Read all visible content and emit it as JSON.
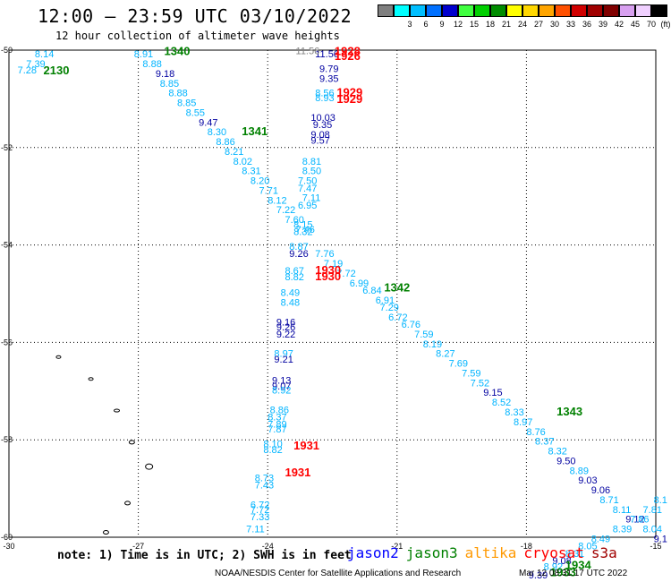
{
  "title": "12:00 — 23:59 UTC 03/10/2022",
  "subtitle": "12 hour collection of altimeter wave heights",
  "legend": {
    "unit": "(ft)",
    "items": [
      {
        "color": "#7f7f7f",
        "label": ""
      },
      {
        "color": "#00ffff",
        "label": "3"
      },
      {
        "color": "#00bfff",
        "label": "6"
      },
      {
        "color": "#0070ff",
        "label": "9"
      },
      {
        "color": "#0000cd",
        "label": "12"
      },
      {
        "color": "#40ff40",
        "label": "15"
      },
      {
        "color": "#00d000",
        "label": "18"
      },
      {
        "color": "#008c00",
        "label": "21"
      },
      {
        "color": "#ffff00",
        "label": "24"
      },
      {
        "color": "#ffd700",
        "label": "27"
      },
      {
        "color": "#ffa500",
        "label": "30"
      },
      {
        "color": "#ff5000",
        "label": "33"
      },
      {
        "color": "#d00000",
        "label": "36"
      },
      {
        "color": "#a00000",
        "label": "39"
      },
      {
        "color": "#800000",
        "label": "42"
      },
      {
        "color": "#d8a0f0",
        "label": "45"
      },
      {
        "color": "#f0d0ff",
        "label": "70"
      },
      {
        "color": "#000000",
        "label": ""
      }
    ]
  },
  "map": {
    "lon_ticks": [
      "-30",
      "-27",
      "-24",
      "-21",
      "-18",
      "-15"
    ],
    "lat_ticks": [
      "-50",
      "-52",
      "-54",
      "-56",
      "-58",
      "-60"
    ],
    "lon_range": [
      -30,
      -15
    ],
    "lat_range": [
      -60,
      -50
    ],
    "grid": "dotted",
    "colors": {
      "cyan": "#00b4ff",
      "navy": "#0000a0",
      "green": "#008000",
      "red": "#ff0000",
      "gray": "#808080"
    }
  },
  "tracks": [
    {
      "name": "track-west-north",
      "labels": [
        {
          "text": "8.14",
          "lon": -29.4,
          "lat": -50.15,
          "c": "cyan"
        },
        {
          "text": "7.39",
          "lon": -29.6,
          "lat": -50.35,
          "c": "cyan"
        },
        {
          "text": "7.28",
          "lon": -29.8,
          "lat": -50.48,
          "c": "cyan"
        }
      ]
    },
    {
      "name": "track-diagonal",
      "labels": [
        {
          "text": "8.91",
          "lon": -27.1,
          "lat": -50.15,
          "c": "cyan"
        },
        {
          "text": "8.88",
          "lon": -26.9,
          "lat": -50.35,
          "c": "cyan"
        },
        {
          "text": "9.18",
          "lon": -26.6,
          "lat": -50.55,
          "c": "navy"
        },
        {
          "text": "8.85",
          "lon": -26.5,
          "lat": -50.75,
          "c": "cyan"
        },
        {
          "text": "8.88",
          "lon": -26.3,
          "lat": -50.95,
          "c": "cyan"
        },
        {
          "text": "8.85",
          "lon": -26.1,
          "lat": -51.15,
          "c": "cyan"
        },
        {
          "text": "8.55",
          "lon": -25.9,
          "lat": -51.35,
          "c": "cyan"
        },
        {
          "text": "9.47",
          "lon": -25.6,
          "lat": -51.55,
          "c": "navy"
        },
        {
          "text": "8.30",
          "lon": -25.4,
          "lat": -51.75,
          "c": "cyan"
        },
        {
          "text": "8.86",
          "lon": -25.2,
          "lat": -51.95,
          "c": "cyan"
        },
        {
          "text": "8.21",
          "lon": -25.0,
          "lat": -52.15,
          "c": "cyan"
        },
        {
          "text": "8.02",
          "lon": -24.8,
          "lat": -52.35,
          "c": "cyan"
        },
        {
          "text": "8.31",
          "lon": -24.6,
          "lat": -52.55,
          "c": "cyan"
        },
        {
          "text": "8.20",
          "lon": -24.4,
          "lat": -52.75,
          "c": "cyan"
        },
        {
          "text": "7.71",
          "lon": -24.2,
          "lat": -52.95,
          "c": "cyan"
        },
        {
          "text": "8.12",
          "lon": -24.0,
          "lat": -53.15,
          "c": "cyan"
        },
        {
          "text": "7.22",
          "lon": -23.8,
          "lat": -53.35,
          "c": "cyan"
        },
        {
          "text": "7.60",
          "lon": -23.6,
          "lat": -53.55,
          "c": "cyan"
        },
        {
          "text": "7.46",
          "lon": -23.35,
          "lat": -53.75,
          "c": "cyan"
        },
        {
          "text": "7.76",
          "lon": -22.9,
          "lat": -54.25,
          "c": "cyan"
        },
        {
          "text": "7.19",
          "lon": -22.7,
          "lat": -54.45,
          "c": "cyan"
        },
        {
          "text": "7.72",
          "lon": -22.4,
          "lat": -54.65,
          "c": "cyan"
        },
        {
          "text": "6.99",
          "lon": -22.1,
          "lat": -54.85,
          "c": "cyan"
        },
        {
          "text": "6.84",
          "lon": -21.8,
          "lat": -55.0,
          "c": "cyan"
        },
        {
          "text": "6.91",
          "lon": -21.5,
          "lat": -55.2,
          "c": "cyan"
        },
        {
          "text": "7.29",
          "lon": -21.4,
          "lat": -55.35,
          "c": "cyan"
        },
        {
          "text": "6.72",
          "lon": -21.2,
          "lat": -55.55,
          "c": "cyan"
        },
        {
          "text": "6.76",
          "lon": -20.9,
          "lat": -55.7,
          "c": "cyan"
        },
        {
          "text": "7.59",
          "lon": -20.6,
          "lat": -55.9,
          "c": "cyan"
        },
        {
          "text": "8.19",
          "lon": -20.4,
          "lat": -56.1,
          "c": "cyan"
        },
        {
          "text": "8.27",
          "lon": -20.1,
          "lat": -56.3,
          "c": "cyan"
        },
        {
          "text": "7.69",
          "lon": -19.8,
          "lat": -56.5,
          "c": "cyan"
        },
        {
          "text": "7.59",
          "lon": -19.5,
          "lat": -56.7,
          "c": "cyan"
        },
        {
          "text": "7.52",
          "lon": -19.3,
          "lat": -56.9,
          "c": "cyan"
        },
        {
          "text": "9.15",
          "lon": -19.0,
          "lat": -57.1,
          "c": "navy"
        },
        {
          "text": "8.52",
          "lon": -18.8,
          "lat": -57.3,
          "c": "cyan"
        },
        {
          "text": "8.33",
          "lon": -18.5,
          "lat": -57.5,
          "c": "cyan"
        },
        {
          "text": "8.97",
          "lon": -18.3,
          "lat": -57.7,
          "c": "cyan"
        },
        {
          "text": "8.76",
          "lon": -18.0,
          "lat": -57.9,
          "c": "cyan"
        },
        {
          "text": "8.37",
          "lon": -17.8,
          "lat": -58.1,
          "c": "cyan"
        },
        {
          "text": "8.32",
          "lon": -17.5,
          "lat": -58.3,
          "c": "cyan"
        },
        {
          "text": "9.50",
          "lon": -17.3,
          "lat": -58.5,
          "c": "navy"
        },
        {
          "text": "8.89",
          "lon": -17.0,
          "lat": -58.7,
          "c": "cyan"
        },
        {
          "text": "9.03",
          "lon": -16.8,
          "lat": -58.9,
          "c": "navy"
        },
        {
          "text": "9.06",
          "lon": -16.5,
          "lat": -59.1,
          "c": "navy"
        },
        {
          "text": "8.71",
          "lon": -16.3,
          "lat": -59.3,
          "c": "cyan"
        },
        {
          "text": "8.11",
          "lon": -16.0,
          "lat": -59.5,
          "c": "cyan"
        },
        {
          "text": "9.12",
          "lon": -15.7,
          "lat": -59.7,
          "c": "navy"
        },
        {
          "text": "8.04",
          "lon": -15.3,
          "lat": -59.9,
          "c": "cyan"
        },
        {
          "text": "9.1",
          "lon": -15.05,
          "lat": -60.1,
          "c": "navy"
        }
      ]
    },
    {
      "name": "track-vertical",
      "labels": [
        {
          "text": "11.56",
          "lon": -22.9,
          "lat": -50.15,
          "c": "navy"
        },
        {
          "text": "9.79",
          "lon": -22.8,
          "lat": -50.45,
          "c": "navy"
        },
        {
          "text": "9.35",
          "lon": -22.8,
          "lat": -50.65,
          "c": "navy"
        },
        {
          "text": "8.56",
          "lon": -22.9,
          "lat": -50.95,
          "c": "cyan"
        },
        {
          "text": "8.93",
          "lon": -22.9,
          "lat": -51.05,
          "c": "cyan"
        },
        {
          "text": "10.03",
          "lon": -23.0,
          "lat": -51.45,
          "c": "navy"
        },
        {
          "text": "9.35",
          "lon": -22.95,
          "lat": -51.6,
          "c": "navy"
        },
        {
          "text": "9.08",
          "lon": -23.0,
          "lat": -51.8,
          "c": "navy"
        },
        {
          "text": "9.57",
          "lon": -23.0,
          "lat": -51.92,
          "c": "navy"
        },
        {
          "text": "8.81",
          "lon": -23.2,
          "lat": -52.35,
          "c": "cyan"
        },
        {
          "text": "8.50",
          "lon": -23.2,
          "lat": -52.55,
          "c": "cyan"
        },
        {
          "text": "7.50",
          "lon": -23.3,
          "lat": -52.75,
          "c": "cyan"
        },
        {
          "text": "7.47",
          "lon": -23.3,
          "lat": -52.9,
          "c": "cyan"
        },
        {
          "text": "7.11",
          "lon": -23.2,
          "lat": -53.1,
          "c": "cyan"
        },
        {
          "text": "6.95",
          "lon": -23.3,
          "lat": -53.25,
          "c": "cyan"
        },
        {
          "text": "8.15",
          "lon": -23.4,
          "lat": -53.65,
          "c": "cyan"
        },
        {
          "text": "8.32",
          "lon": -23.4,
          "lat": -53.8,
          "c": "cyan"
        },
        {
          "text": "8.87",
          "lon": -23.5,
          "lat": -54.1,
          "c": "cyan"
        },
        {
          "text": "9.26",
          "lon": -23.5,
          "lat": -54.25,
          "c": "navy"
        },
        {
          "text": "8.67",
          "lon": -23.6,
          "lat": -54.6,
          "c": "cyan"
        },
        {
          "text": "8.82",
          "lon": -23.6,
          "lat": -54.72,
          "c": "cyan"
        },
        {
          "text": "8.49",
          "lon": -23.7,
          "lat": -55.05,
          "c": "cyan"
        },
        {
          "text": "8.48",
          "lon": -23.7,
          "lat": -55.25,
          "c": "cyan"
        },
        {
          "text": "9.16",
          "lon": -23.8,
          "lat": -55.65,
          "c": "navy"
        },
        {
          "text": "9.26",
          "lon": -23.8,
          "lat": -55.75,
          "c": "navy"
        },
        {
          "text": "9.22",
          "lon": -23.8,
          "lat": -55.9,
          "c": "navy"
        },
        {
          "text": "8.97",
          "lon": -23.85,
          "lat": -56.3,
          "c": "cyan"
        },
        {
          "text": "9.21",
          "lon": -23.85,
          "lat": -56.42,
          "c": "navy"
        },
        {
          "text": "9.13",
          "lon": -23.9,
          "lat": -56.85,
          "c": "navy"
        },
        {
          "text": "9.07",
          "lon": -23.9,
          "lat": -56.97,
          "c": "navy"
        },
        {
          "text": "8.92",
          "lon": -23.9,
          "lat": -57.05,
          "c": "cyan"
        },
        {
          "text": "8.86",
          "lon": -23.95,
          "lat": -57.45,
          "c": "cyan"
        },
        {
          "text": "8.37",
          "lon": -24.0,
          "lat": -57.6,
          "c": "cyan"
        },
        {
          "text": "7.89",
          "lon": -24.0,
          "lat": -57.75,
          "c": "cyan"
        },
        {
          "text": "7.87",
          "lon": -24.0,
          "lat": -57.85,
          "c": "cyan"
        },
        {
          "text": "8.10",
          "lon": -24.1,
          "lat": -58.15,
          "c": "cyan"
        },
        {
          "text": "8.82",
          "lon": -24.1,
          "lat": -58.27,
          "c": "cyan"
        },
        {
          "text": "8.73",
          "lon": -24.3,
          "lat": -58.85,
          "c": "cyan"
        },
        {
          "text": "7.43",
          "lon": -24.3,
          "lat": -59.0,
          "c": "cyan"
        },
        {
          "text": "6.72",
          "lon": -24.4,
          "lat": -59.4,
          "c": "cyan"
        },
        {
          "text": "7.72",
          "lon": -24.4,
          "lat": -59.5,
          "c": "cyan"
        },
        {
          "text": "7.33",
          "lon": -24.4,
          "lat": -59.65,
          "c": "cyan"
        },
        {
          "text": "7.11",
          "lon": -24.5,
          "lat": -59.9,
          "c": "cyan"
        }
      ]
    },
    {
      "name": "track-southeast",
      "labels": [
        {
          "text": "8.1",
          "lon": -15.05,
          "lat": -59.3,
          "c": "cyan"
        },
        {
          "text": "7.81",
          "lon": -15.3,
          "lat": -59.5,
          "c": "cyan"
        },
        {
          "text": "7.86",
          "lon": -15.6,
          "lat": -59.7,
          "c": "cyan"
        },
        {
          "text": "8.39",
          "lon": -16.0,
          "lat": -59.9,
          "c": "cyan"
        },
        {
          "text": "8.49",
          "lon": -16.5,
          "lat": -60.1,
          "c": "cyan"
        },
        {
          "text": "8.05",
          "lon": -16.8,
          "lat": -60.25,
          "c": "cyan"
        },
        {
          "text": "8.31",
          "lon": -17.1,
          "lat": -60.4,
          "c": "cyan"
        },
        {
          "text": "9.08",
          "lon": -17.4,
          "lat": -60.55,
          "c": "navy"
        },
        {
          "text": "8.92",
          "lon": -17.6,
          "lat": -60.67,
          "c": "cyan"
        },
        {
          "text": "9.39",
          "lon": -17.95,
          "lat": -60.85,
          "c": "navy"
        }
      ]
    }
  ],
  "time_labels": [
    {
      "text": "2130",
      "lon": -29.2,
      "lat": -50.5,
      "c": "green"
    },
    {
      "text": "1340",
      "lon": -26.4,
      "lat": -50.1,
      "c": "green"
    },
    {
      "text": "1341",
      "lon": -24.6,
      "lat": -51.75,
      "c": "green"
    },
    {
      "text": "1342",
      "lon": -21.3,
      "lat": -54.95,
      "c": "green"
    },
    {
      "text": "1343",
      "lon": -17.3,
      "lat": -57.5,
      "c": "green"
    },
    {
      "text": "1934",
      "lon": -17.1,
      "lat": -60.65,
      "c": "green"
    },
    {
      "text": "1933",
      "lon": -17.45,
      "lat": -60.8,
      "c": "green"
    },
    {
      "text": "11.56",
      "lon": -23.35,
      "lat": -50.08,
      "c": "gray"
    },
    {
      "text": "1928",
      "lon": -22.45,
      "lat": -50.1,
      "c": "red"
    },
    {
      "text": "1926",
      "lon": -22.45,
      "lat": -50.2,
      "c": "red"
    },
    {
      "text": "1929",
      "lon": -22.4,
      "lat": -50.95,
      "c": "red"
    },
    {
      "text": "1929",
      "lon": -22.4,
      "lat": -51.08,
      "c": "red"
    },
    {
      "text": "1930",
      "lon": -22.9,
      "lat": -54.6,
      "c": "red"
    },
    {
      "text": "1930",
      "lon": -22.9,
      "lat": -54.72,
      "c": "red"
    },
    {
      "text": "1931",
      "lon": -23.4,
      "lat": -58.2,
      "c": "red"
    },
    {
      "text": "1931",
      "lon": -23.6,
      "lat": -58.75,
      "c": "red"
    }
  ],
  "note": "note: 1) Time is in UTC; 2) SWH is in feet",
  "missions": [
    {
      "name": "jason2",
      "color": "#0000ff"
    },
    {
      "name": "jason3",
      "color": "#008000"
    },
    {
      "name": "altika",
      "color": "#ff9900"
    },
    {
      "name": "cryosat",
      "color": "#ff0000"
    },
    {
      "name": "s3a",
      "color": "#a00000"
    }
  ],
  "credit": "NOAA/NESDIS Center for Satellite Applications and Research",
  "stamp": "Mar 12 08:31:17 UTC 2022"
}
